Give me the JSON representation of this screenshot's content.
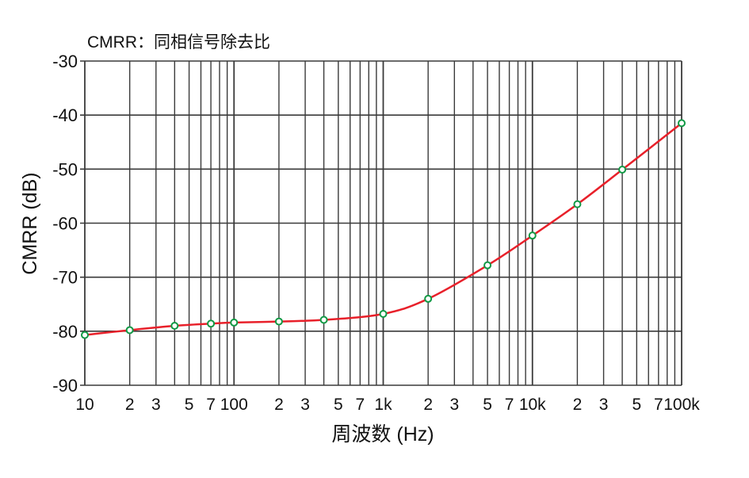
{
  "chart_data": {
    "type": "line",
    "title": "CMRR：同相信号除去比",
    "xlabel": "周波数 (Hz)",
    "ylabel": "CMRR (dB)",
    "xscale": "log",
    "xlim": [
      10,
      100000
    ],
    "ylim": [
      -90,
      -30
    ],
    "grid": true,
    "yticks": [
      -30,
      -40,
      -50,
      -60,
      -70,
      -80,
      -90
    ],
    "xticks": [
      {
        "value": 10,
        "label": "10"
      },
      {
        "value": 20,
        "label": "2"
      },
      {
        "value": 30,
        "label": "3"
      },
      {
        "value": 50,
        "label": "5"
      },
      {
        "value": 70,
        "label": "7"
      },
      {
        "value": 100,
        "label": "100"
      },
      {
        "value": 200,
        "label": "2"
      },
      {
        "value": 300,
        "label": "3"
      },
      {
        "value": 500,
        "label": "5"
      },
      {
        "value": 700,
        "label": "7"
      },
      {
        "value": 1000,
        "label": "1k"
      },
      {
        "value": 2000,
        "label": "2"
      },
      {
        "value": 3000,
        "label": "3"
      },
      {
        "value": 5000,
        "label": "5"
      },
      {
        "value": 7000,
        "label": "7"
      },
      {
        "value": 10000,
        "label": "10k"
      },
      {
        "value": 20000,
        "label": "2"
      },
      {
        "value": 30000,
        "label": "3"
      },
      {
        "value": 50000,
        "label": "5"
      },
      {
        "value": 70000,
        "label": "7"
      },
      {
        "value": 100000,
        "label": "100k"
      }
    ],
    "series": [
      {
        "x": [
          10,
          20,
          40,
          70,
          100,
          200,
          400,
          1000,
          2000,
          5000,
          10000,
          20000,
          40000,
          100000
        ],
        "y": [
          -80.7,
          -79.8,
          -79.0,
          -78.6,
          -78.4,
          -78.2,
          -77.9,
          -76.8,
          -74.0,
          -67.8,
          -62.3,
          -56.5,
          -50.1,
          -41.5
        ]
      }
    ],
    "colors": {
      "line": "#e8202a",
      "marker": "#119945",
      "grid": "#3a3a3a"
    }
  }
}
